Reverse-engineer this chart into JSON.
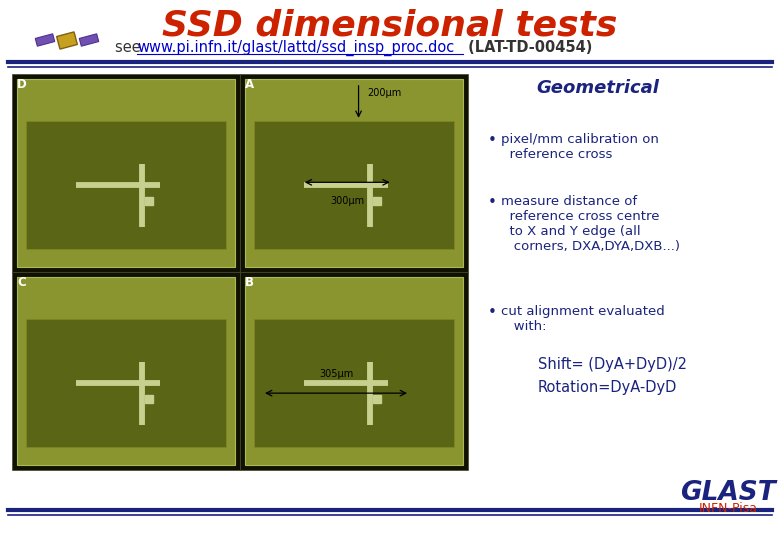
{
  "title": "SSD dimensional tests",
  "title_color": "#CC2200",
  "subtitle_see": "see ",
  "subtitle_url": "www.pi.infn.it/glast/lattd/ssd_insp_proc.doc",
  "subtitle_ref": " (LAT-TD-00454)",
  "subtitle_color": "#222222",
  "url_color": "#0000CC",
  "bg_color": "#FFFFFF",
  "header_line_color": "#1a237e",
  "geo_title": "Geometrical",
  "geo_title_color": "#1a237e",
  "bullet_color": "#1a237e",
  "text_color": "#1a237e",
  "bullet1": "pixel/mm calibration on\n  reference cross",
  "bullet2": "measure distance of\n  reference cross centre\n  to X and Y edge (all\n   corners, DXA,DYA,DXB...)",
  "bullet3": "cut alignment evaluated\n   with:",
  "shift_text": "Shift= (DyA+DyD)/2",
  "rotation_text": "Rotation=DyA-DyD",
  "label_D": "D",
  "label_A": "A",
  "label_C": "C",
  "label_B": "B",
  "dim_200": "200μm",
  "dim_300": "300μm",
  "dim_305": "305μm",
  "glast_text": "GLAST",
  "infn_text": "INFN-Pisa",
  "glast_color": "#1a237e",
  "infn_color": "#CC2200",
  "panel_outer": "#111100",
  "panel_green": "#8a9530",
  "panel_chip": "#5a6515",
  "panel_cross": "#c8d090"
}
